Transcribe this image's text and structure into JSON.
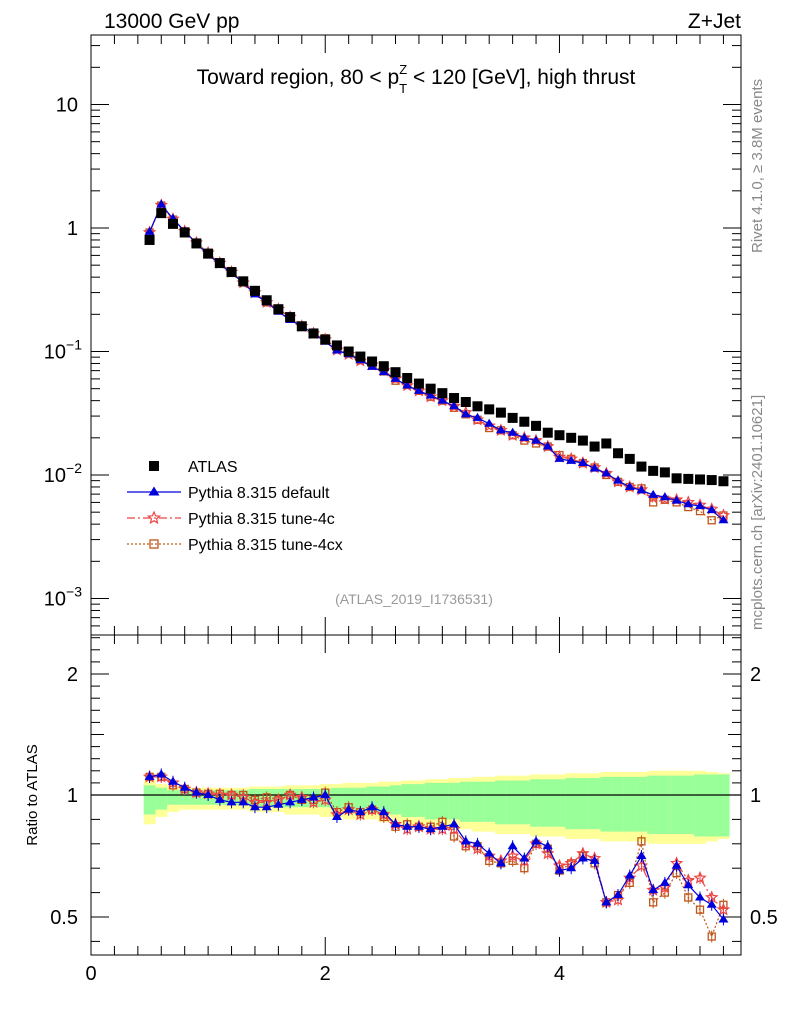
{
  "header": {
    "left": "13000 GeV pp",
    "right": "Z+Jet"
  },
  "side_labels": {
    "rivet": "Rivet 4.1.0, ≥ 3.8M events",
    "mcplots": "mcplots.cern.ch [arXiv:2401.10621]"
  },
  "chart_data": [
    {
      "type": "scatter",
      "panel": "main",
      "title_parts": {
        "pre": "Toward region, 80 < p",
        "sup": "Z",
        "sub": "T",
        "post": " < 120 [GeV], high thrust"
      },
      "analysis_id": "(ATLAS_2019_I1736531)",
      "yscale": "log",
      "ylim": [
        0.0004,
        40
      ],
      "xlim": [
        0,
        5.55
      ],
      "yticks": [
        {
          "value": 10,
          "base": "10",
          "exp": ""
        },
        {
          "value": 1,
          "base": "1",
          "exp": ""
        },
        {
          "value": 0.1,
          "base": "10",
          "exp": "−1"
        },
        {
          "value": 0.01,
          "base": "10",
          "exp": "−2"
        },
        {
          "value": 0.001,
          "base": "10",
          "exp": "−3"
        }
      ],
      "x": [
        0.5,
        0.6,
        0.7,
        0.8,
        0.9,
        1.0,
        1.1,
        1.2,
        1.3,
        1.4,
        1.5,
        1.6,
        1.7,
        1.8,
        1.9,
        2.0,
        2.1,
        2.2,
        2.3,
        2.4,
        2.5,
        2.6,
        2.7,
        2.8,
        2.9,
        3.0,
        3.1,
        3.2,
        3.3,
        3.4,
        3.5,
        3.6,
        3.7,
        3.8,
        3.9,
        4.0,
        4.1,
        4.2,
        4.3,
        4.4,
        4.5,
        4.6,
        4.7,
        4.8,
        4.9,
        5.0,
        5.1,
        5.2,
        5.3,
        5.4
      ],
      "legend": [
        {
          "name": "ATLAS",
          "marker": "square-filled",
          "line": "none",
          "color": "#000000"
        },
        {
          "name": "Pythia 8.315 default",
          "marker": "triangle-filled",
          "line": "solid",
          "color": "#0000dd"
        },
        {
          "name": "Pythia 8.315 tune-4c",
          "marker": "star-open",
          "line": "dashdot",
          "color": "#ee4444"
        },
        {
          "name": "Pythia 8.315 tune-4cx",
          "marker": "square-open",
          "line": "dotted",
          "color": "#c0561a"
        }
      ],
      "series": [
        {
          "name": "ATLAS",
          "values": [
            0.8,
            1.32,
            1.08,
            0.92,
            0.75,
            0.62,
            0.52,
            0.44,
            0.37,
            0.31,
            0.26,
            0.22,
            0.19,
            0.16,
            0.14,
            0.125,
            0.112,
            0.1,
            0.091,
            0.083,
            0.076,
            0.068,
            0.061,
            0.055,
            0.05,
            0.046,
            0.042,
            0.039,
            0.036,
            0.034,
            0.032,
            0.029,
            0.027,
            0.025,
            0.022,
            0.021,
            0.02,
            0.019,
            0.017,
            0.018,
            0.015,
            0.0135,
            0.0117,
            0.0108,
            0.0105,
            0.0094,
            0.0093,
            0.0092,
            0.0091,
            0.0089
          ]
        },
        {
          "name": "Pythia 8.315 default",
          "values": [
            0.93,
            1.55,
            1.19,
            0.94,
            0.75,
            0.61,
            0.51,
            0.43,
            0.36,
            0.29,
            0.25,
            0.21,
            0.18,
            0.16,
            0.14,
            0.12,
            0.102,
            0.095,
            0.085,
            0.075,
            0.068,
            0.06,
            0.053,
            0.048,
            0.044,
            0.04,
            0.036,
            0.031,
            0.029,
            0.026,
            0.023,
            0.022,
            0.02,
            0.019,
            0.017,
            0.0135,
            0.013,
            0.0125,
            0.0113,
            0.0103,
            0.009,
            0.008,
            0.0075,
            0.0069,
            0.0066,
            0.0062,
            0.0058,
            0.0056,
            0.0052,
            0.0043
          ]
        },
        {
          "name": "Pythia 8.315 tune-4c",
          "values": [
            0.92,
            1.53,
            1.18,
            0.94,
            0.76,
            0.63,
            0.52,
            0.44,
            0.36,
            0.3,
            0.25,
            0.22,
            0.19,
            0.16,
            0.14,
            0.125,
            0.103,
            0.095,
            0.084,
            0.078,
            0.07,
            0.06,
            0.053,
            0.048,
            0.043,
            0.04,
            0.036,
            0.032,
            0.028,
            0.025,
            0.023,
            0.021,
            0.02,
            0.019,
            0.017,
            0.014,
            0.0135,
            0.0125,
            0.0115,
            0.0103,
            0.0088,
            0.008,
            0.0076,
            0.0066,
            0.0064,
            0.0063,
            0.006,
            0.0057,
            0.0053,
            0.0047
          ]
        },
        {
          "name": "Pythia 8.315 tune-4cx",
          "values": [
            0.92,
            1.52,
            1.17,
            0.94,
            0.76,
            0.63,
            0.52,
            0.44,
            0.37,
            0.3,
            0.25,
            0.22,
            0.19,
            0.16,
            0.14,
            0.128,
            0.104,
            0.097,
            0.086,
            0.077,
            0.069,
            0.058,
            0.054,
            0.048,
            0.043,
            0.04,
            0.035,
            0.031,
            0.028,
            0.024,
            0.023,
            0.021,
            0.019,
            0.018,
            0.017,
            0.0145,
            0.0135,
            0.0125,
            0.0115,
            0.01,
            0.0088,
            0.008,
            0.0078,
            0.006,
            0.0063,
            0.006,
            0.0055,
            0.0051,
            0.0043,
            0.0047
          ]
        }
      ]
    },
    {
      "type": "scatter",
      "panel": "ratio",
      "ylabel": "Ratio to ATLAS",
      "ylim": [
        0.35,
        2.35
      ],
      "xlim": [
        0,
        5.55
      ],
      "yticks_left": [
        "2",
        "1",
        "0.5"
      ],
      "yticks_right": [
        "2",
        "1",
        "0.5"
      ],
      "ytick_values": [
        2,
        1,
        0.5
      ],
      "xticks": [
        "0",
        "2",
        "4"
      ],
      "xtick_values": [
        0,
        2,
        4
      ],
      "band_inner": [
        0.08,
        0.06,
        0.04,
        0.04,
        0.04,
        0.04,
        0.04,
        0.04,
        0.04,
        0.05,
        0.05,
        0.05,
        0.05,
        0.05,
        0.05,
        0.05,
        0.06,
        0.06,
        0.06,
        0.07,
        0.07,
        0.08,
        0.09,
        0.09,
        0.1,
        0.1,
        0.1,
        0.11,
        0.11,
        0.11,
        0.12,
        0.12,
        0.12,
        0.13,
        0.13,
        0.13,
        0.14,
        0.14,
        0.14,
        0.15,
        0.15,
        0.15,
        0.15,
        0.16,
        0.16,
        0.16,
        0.16,
        0.17,
        0.17,
        0.17
      ],
      "band_outer": [
        0.12,
        0.09,
        0.07,
        0.06,
        0.06,
        0.06,
        0.06,
        0.06,
        0.06,
        0.07,
        0.07,
        0.07,
        0.08,
        0.08,
        0.08,
        0.09,
        0.09,
        0.1,
        0.1,
        0.1,
        0.11,
        0.11,
        0.12,
        0.12,
        0.13,
        0.13,
        0.14,
        0.14,
        0.15,
        0.15,
        0.16,
        0.16,
        0.16,
        0.17,
        0.17,
        0.17,
        0.18,
        0.18,
        0.18,
        0.19,
        0.19,
        0.19,
        0.19,
        0.2,
        0.2,
        0.2,
        0.2,
        0.2,
        0.19,
        0.18
      ],
      "series": [
        {
          "name": "Pythia 8.315 default",
          "values": [
            1.15,
            1.17,
            1.11,
            1.06,
            1.02,
            1.0,
            0.98,
            0.97,
            0.97,
            0.95,
            0.95,
            0.96,
            0.97,
            0.98,
            0.99,
            1.0,
            0.91,
            0.94,
            0.93,
            0.95,
            0.93,
            0.88,
            0.87,
            0.87,
            0.86,
            0.87,
            0.88,
            0.81,
            0.8,
            0.76,
            0.72,
            0.79,
            0.74,
            0.81,
            0.79,
            0.69,
            0.7,
            0.74,
            0.73,
            0.56,
            0.59,
            0.67,
            0.75,
            0.61,
            0.64,
            0.71,
            0.63,
            0.58,
            0.55,
            0.49
          ]
        },
        {
          "name": "Pythia 8.315 tune-4c",
          "values": [
            1.15,
            1.15,
            1.1,
            1.05,
            1.02,
            1.01,
            1.0,
            1.0,
            0.99,
            0.97,
            0.97,
            0.98,
            1.0,
            0.99,
            0.97,
            0.98,
            0.92,
            0.94,
            0.92,
            0.94,
            0.92,
            0.88,
            0.86,
            0.87,
            0.86,
            0.86,
            0.86,
            0.8,
            0.78,
            0.75,
            0.73,
            0.75,
            0.73,
            0.8,
            0.76,
            0.71,
            0.72,
            0.76,
            0.74,
            0.56,
            0.57,
            0.66,
            0.71,
            0.61,
            0.62,
            0.72,
            0.65,
            0.66,
            0.58,
            0.53
          ]
        },
        {
          "name": "Pythia 8.315 tune-4cx",
          "values": [
            1.15,
            1.15,
            1.08,
            1.05,
            1.02,
            1.01,
            1.01,
            1.0,
            1.0,
            0.98,
            0.99,
            0.98,
            1.0,
            0.98,
            0.98,
            1.02,
            0.93,
            0.95,
            0.93,
            0.94,
            0.91,
            0.87,
            0.88,
            0.87,
            0.87,
            0.89,
            0.83,
            0.79,
            0.79,
            0.73,
            0.72,
            0.73,
            0.7,
            0.8,
            0.78,
            0.69,
            0.72,
            0.75,
            0.72,
            0.56,
            0.59,
            0.64,
            0.81,
            0.56,
            0.6,
            0.68,
            0.58,
            0.53,
            0.42,
            0.55
          ]
        }
      ]
    }
  ]
}
